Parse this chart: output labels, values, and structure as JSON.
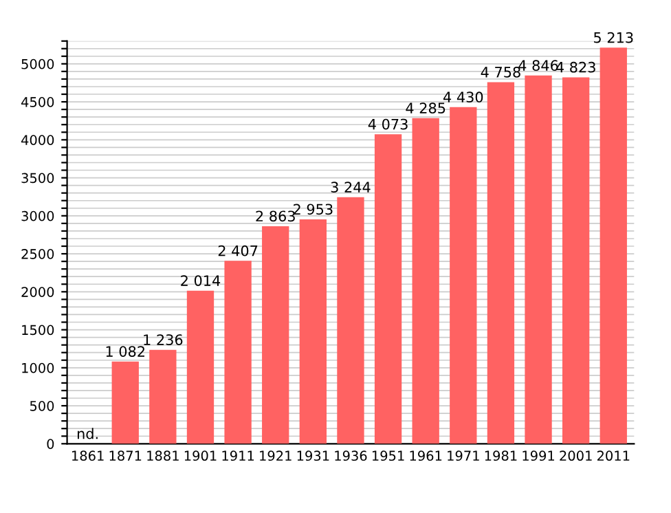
{
  "chart_data": {
    "type": "bar",
    "categories": [
      "1861",
      "1871",
      "1881",
      "1901",
      "1911",
      "1921",
      "1931",
      "1936",
      "1951",
      "1961",
      "1971",
      "1981",
      "1991",
      "2001",
      "2011"
    ],
    "values": [
      null,
      1082,
      1236,
      2014,
      2407,
      2863,
      2953,
      3244,
      4073,
      4285,
      4430,
      4758,
      4846,
      4823,
      5213
    ],
    "value_labels": [
      "nd.",
      "1 082",
      "1 236",
      "2 014",
      "2 407",
      "2 863",
      "2 953",
      "3 244",
      "4 073",
      "4 285",
      "4 430",
      "4 758",
      "4 846",
      "4 823",
      "5 213"
    ],
    "color": "#ff6262",
    "ylim": [
      0,
      5300
    ],
    "yticks": [
      0,
      {
        "value": 100,
        "label": null
      },
      {
        "value": 200,
        "label": null
      },
      {
        "value": 300,
        "label": null
      },
      {
        "value": 400,
        "label": null
      },
      500,
      {
        "value": 600,
        "label": null
      },
      {
        "value": 700,
        "label": null
      },
      {
        "value": 800,
        "label": null
      },
      {
        "value": 900,
        "label": null
      },
      1000,
      {
        "value": 1100,
        "label": null
      },
      {
        "value": 1200,
        "label": null
      },
      {
        "value": 1300,
        "label": null
      },
      {
        "value": 1400,
        "label": null
      },
      1500,
      {
        "value": 1600,
        "label": null
      },
      {
        "value": 1700,
        "label": null
      },
      {
        "value": 1800,
        "label": null
      },
      {
        "value": 1900,
        "label": null
      },
      2000,
      {
        "value": 2100,
        "label": null
      },
      {
        "value": 2200,
        "label": null
      },
      {
        "value": 2300,
        "label": null
      },
      {
        "value": 2400,
        "label": null
      },
      2500,
      {
        "value": 2600,
        "label": null
      },
      {
        "value": 2700,
        "label": null
      },
      {
        "value": 2800,
        "label": null
      },
      {
        "value": 2900,
        "label": null
      },
      3000,
      {
        "value": 3100,
        "label": null
      },
      {
        "value": 3200,
        "label": null
      },
      {
        "value": 3300,
        "label": null
      },
      {
        "value": 3400,
        "label": null
      },
      3500,
      {
        "value": 3600,
        "label": null
      },
      {
        "value": 3700,
        "label": null
      },
      {
        "value": 3800,
        "label": null
      },
      {
        "value": 3900,
        "label": null
      },
      4000,
      {
        "value": 4100,
        "label": null
      },
      {
        "value": 4200,
        "label": null
      },
      {
        "value": 4300,
        "label": null
      },
      {
        "value": 4400,
        "label": null
      },
      4500,
      {
        "value": 4600,
        "label": null
      },
      {
        "value": 4700,
        "label": null
      },
      {
        "value": 4800,
        "label": null
      },
      {
        "value": 4900,
        "label": null
      },
      5000,
      {
        "value": 5100,
        "label": null
      },
      {
        "value": 5200,
        "label": null
      },
      {
        "value": 5300,
        "label": null
      }
    ],
    "grid": "y"
  }
}
